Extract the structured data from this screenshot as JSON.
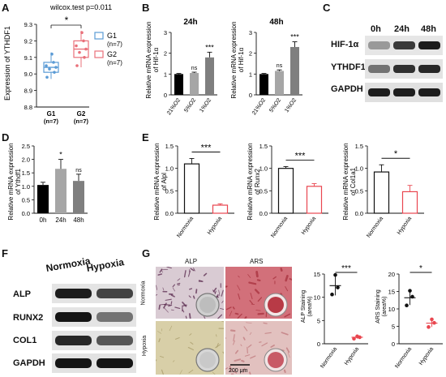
{
  "panels": {
    "A": "A",
    "B": "B",
    "C": "C",
    "D": "D",
    "E": "E",
    "F": "F",
    "G": "G"
  },
  "panelA": {
    "stat": "wilcox.test p=0.011",
    "sig": "*",
    "ylabel": "Expression of YTHDF1",
    "legend": [
      {
        "name": "G1",
        "n": "(n=7)",
        "color": "#5b9bd5"
      },
      {
        "name": "G2",
        "n": "(n=7)",
        "color": "#e9707a"
      }
    ]
  },
  "panelB": {
    "titles": [
      "24h",
      "48h"
    ],
    "ylabel_l1": "Relative mRNA expression",
    "ylabel_l2": "of Hif-1α"
  },
  "panelC": {
    "times": [
      "0h",
      "24h",
      "48h"
    ],
    "rows": [
      "HIF-1α",
      "YTHDF1",
      "GAPDH"
    ]
  },
  "panelD": {
    "ylabel_l1": "Relative mRNA expression",
    "ylabel_l2": "of Ythdf1"
  },
  "panelE": {
    "ylabels": [
      [
        "Relative mRNA expression",
        "of Alpl"
      ],
      [
        "Relative mRNA expression",
        "of Runx2"
      ],
      [
        "Relative mRNA expression",
        "of Col1a1"
      ]
    ]
  },
  "panelF": {
    "cols": [
      "Normoxia",
      "Hypoxia"
    ],
    "rows": [
      "ALP",
      "RUNX2",
      "COL1",
      "GAPDH"
    ]
  },
  "panelG": {
    "col_labels": [
      "ALP",
      "ARS"
    ],
    "row_labels": [
      "Normoxia",
      "Hypoxia"
    ],
    "scale_bar": "200 μm",
    "alp_ylabel_l1": "ALP Staining",
    "alp_ylabel_l2": "(area%)",
    "ars_ylabel_l1": "ARS Staining",
    "ars_ylabel_l2": "(area%)"
  },
  "chart_data": [
    {
      "id": "A",
      "type": "box",
      "categories": [
        "G1\n(n=7)",
        "G2\n(n=7)"
      ],
      "ylim": [
        8.8,
        9.3
      ],
      "yticks": [
        8.8,
        8.9,
        9.0,
        9.1,
        9.2,
        9.3
      ],
      "series": [
        {
          "name": "G1",
          "q1": 9.01,
          "median": 9.04,
          "q3": 9.07,
          "min": 8.97,
          "max": 9.13,
          "points": [
            8.98,
            9.01,
            9.03,
            9.04,
            9.05,
            9.07,
            9.12
          ]
        },
        {
          "name": "G2",
          "q1": 9.1,
          "median": 9.15,
          "q3": 9.2,
          "min": 9.04,
          "max": 9.26,
          "points": [
            9.05,
            9.1,
            9.13,
            9.15,
            9.17,
            9.2,
            9.25
          ]
        }
      ]
    },
    {
      "id": "B-24h",
      "type": "bar",
      "title": "24h",
      "categories": [
        "21%O2",
        "5%O2",
        "1%O2"
      ],
      "values": [
        1.0,
        1.05,
        1.8
      ],
      "errors": [
        0.03,
        0.04,
        0.25
      ],
      "sig": [
        "",
        "ns",
        "***"
      ],
      "ylim": [
        0,
        3
      ],
      "yticks": [
        0,
        1,
        2,
        3
      ]
    },
    {
      "id": "B-48h",
      "type": "bar",
      "title": "48h",
      "categories": [
        "21%O2",
        "5%O2",
        "1%O2"
      ],
      "values": [
        1.0,
        1.15,
        2.3
      ],
      "errors": [
        0.03,
        0.05,
        0.25
      ],
      "sig": [
        "",
        "ns",
        "***"
      ],
      "ylim": [
        0,
        3
      ],
      "yticks": [
        0,
        1,
        2,
        3
      ]
    },
    {
      "id": "D",
      "type": "bar",
      "categories": [
        "0h",
        "24h",
        "48h"
      ],
      "values": [
        1.05,
        1.65,
        1.2
      ],
      "errors": [
        0.1,
        0.35,
        0.25
      ],
      "sig": [
        "",
        "*",
        "ns"
      ],
      "ylim": [
        0.0,
        2.5
      ],
      "yticks": [
        0.0,
        0.5,
        1.0,
        1.5,
        2.0,
        2.5
      ]
    },
    {
      "id": "E-Alpl",
      "type": "bar",
      "categories": [
        "Normoxia",
        "Hypoxia"
      ],
      "values": [
        1.1,
        0.18
      ],
      "errors": [
        0.12,
        0.03
      ],
      "sig": "***",
      "ylim": [
        0.0,
        1.5
      ],
      "yticks": [
        0.0,
        0.5,
        1.0,
        1.5
      ]
    },
    {
      "id": "E-Runx2",
      "type": "bar",
      "categories": [
        "Normoxia",
        "Hypoxia"
      ],
      "values": [
        1.0,
        0.6
      ],
      "errors": [
        0.04,
        0.06
      ],
      "sig": "***",
      "ylim": [
        0.0,
        1.5
      ],
      "yticks": [
        0.0,
        0.5,
        1.0,
        1.5
      ]
    },
    {
      "id": "E-Col1a1",
      "type": "bar",
      "categories": [
        "Normoxia",
        "Hypoxia"
      ],
      "values": [
        0.92,
        0.48
      ],
      "errors": [
        0.16,
        0.14
      ],
      "sig": "*",
      "ylim": [
        0.0,
        1.5
      ],
      "yticks": [
        0.0,
        0.5,
        1.0,
        1.5
      ]
    },
    {
      "id": "G-ALP",
      "type": "scatter",
      "categories": [
        "Normoxia",
        "Hypoxia"
      ],
      "points": [
        [
          10.6,
          12.1,
          14.8
        ],
        [
          1.1,
          1.4,
          1.6
        ]
      ],
      "means": [
        12.5,
        1.4
      ],
      "sds": [
        2.1,
        0.3
      ],
      "sig": "***",
      "ylim": [
        0,
        15
      ],
      "yticks": [
        0,
        5,
        10,
        15
      ]
    },
    {
      "id": "G-ARS",
      "type": "scatter",
      "categories": [
        "Normoxia",
        "Hypoxia"
      ],
      "points": [
        [
          11.0,
          13.5,
          15.2
        ],
        [
          4.8,
          6.0,
          7.0
        ]
      ],
      "means": [
        13.2,
        5.9
      ],
      "sds": [
        2.1,
        1.1
      ],
      "sig": "*",
      "ylim": [
        0,
        20
      ],
      "yticks": [
        0,
        5,
        10,
        15,
        20
      ]
    }
  ]
}
